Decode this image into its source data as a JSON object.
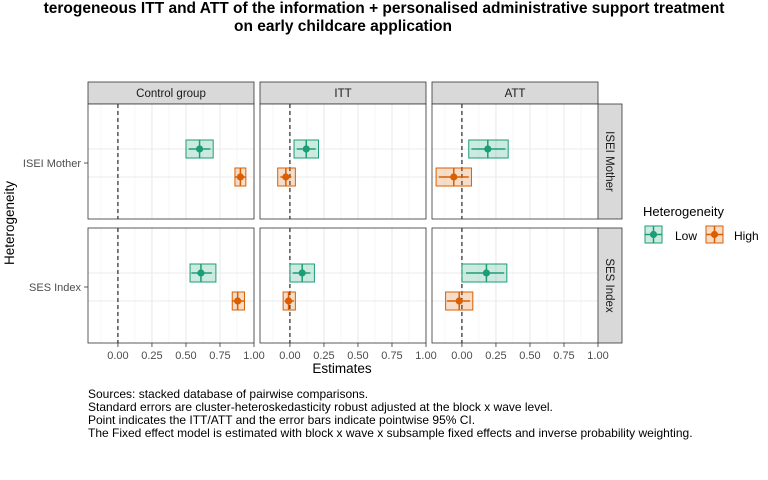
{
  "chart_data": {
    "type": "scatter",
    "title": [
      "terogeneous ITT and ATT of the information + personalised administrative support treatment",
      "on early childcare application"
    ],
    "xlabel": "Estimates",
    "ylabel": "Heterogeneity",
    "xlim": [
      -0.22,
      1.0
    ],
    "xticks": [
      0.0,
      0.25,
      0.5,
      0.75,
      1.0
    ],
    "xtick_labels": [
      "0.00",
      "0.25",
      "0.50",
      "0.75",
      "1.00"
    ],
    "reference_line_x": 0,
    "grid": true,
    "facet_columns": [
      "Control group",
      "ITT",
      "ATT"
    ],
    "facet_rows": [
      "ISEI Mother",
      "SES Index"
    ],
    "y_categories": [
      "ISEI Mother",
      "SES Index"
    ],
    "legend": {
      "title": "Heterogeneity",
      "position": "right",
      "entries": [
        {
          "name": "Low",
          "color": "#1b9e77"
        },
        {
          "name": "High",
          "color": "#d95f02"
        }
      ]
    },
    "points": [
      {
        "col": "Control group",
        "row": "ISEI Mother",
        "group": "Low",
        "est": 0.6,
        "ci": [
          0.52,
          0.68
        ],
        "box": [
          0.5,
          0.7
        ]
      },
      {
        "col": "Control group",
        "row": "ISEI Mother",
        "group": "High",
        "est": 0.9,
        "ci": [
          0.86,
          0.94
        ],
        "box": [
          0.86,
          0.94
        ]
      },
      {
        "col": "ITT",
        "row": "ISEI Mother",
        "group": "Low",
        "est": 0.12,
        "ci": [
          0.05,
          0.19
        ],
        "box": [
          0.03,
          0.21
        ]
      },
      {
        "col": "ITT",
        "row": "ISEI Mother",
        "group": "High",
        "est": -0.03,
        "ci": [
          -0.07,
          0.01
        ],
        "box": [
          -0.09,
          0.04
        ]
      },
      {
        "col": "ATT",
        "row": "ISEI Mother",
        "group": "Low",
        "est": 0.19,
        "ci": [
          0.07,
          0.32
        ],
        "box": [
          0.05,
          0.34
        ]
      },
      {
        "col": "ATT",
        "row": "ISEI Mother",
        "group": "High",
        "est": -0.06,
        "ci": [
          -0.17,
          0.05
        ],
        "box": [
          -0.19,
          0.07
        ]
      },
      {
        "col": "Control group",
        "row": "SES Index",
        "group": "Low",
        "est": 0.61,
        "ci": [
          0.54,
          0.69
        ],
        "box": [
          0.53,
          0.72
        ]
      },
      {
        "col": "Control group",
        "row": "SES Index",
        "group": "High",
        "est": 0.88,
        "ci": [
          0.84,
          0.93
        ],
        "box": [
          0.84,
          0.93
        ]
      },
      {
        "col": "ITT",
        "row": "SES Index",
        "group": "Low",
        "est": 0.09,
        "ci": [
          0.02,
          0.15
        ],
        "box": [
          0.0,
          0.18
        ]
      },
      {
        "col": "ITT",
        "row": "SES Index",
        "group": "High",
        "est": -0.01,
        "ci": [
          -0.04,
          0.03
        ],
        "box": [
          -0.05,
          0.04
        ]
      },
      {
        "col": "ATT",
        "row": "SES Index",
        "group": "Low",
        "est": 0.18,
        "ci": [
          0.03,
          0.31
        ],
        "box": [
          0.0,
          0.33
        ]
      },
      {
        "col": "ATT",
        "row": "SES Index",
        "group": "High",
        "est": -0.02,
        "ci": [
          -0.11,
          0.06
        ],
        "box": [
          -0.12,
          0.08
        ]
      }
    ]
  },
  "caption": [
    "Sources: stacked database of pairwise comparisons.",
    "Standard errors are cluster-heteroskedasticity robust adjusted at the block x wave level.",
    "Point indicates the ITT/ATT and the error bars indicate pointwise 95% CI.",
    "The Fixed effect model is estimated with block x wave x subsample fixed effects and inverse probability weighting."
  ]
}
